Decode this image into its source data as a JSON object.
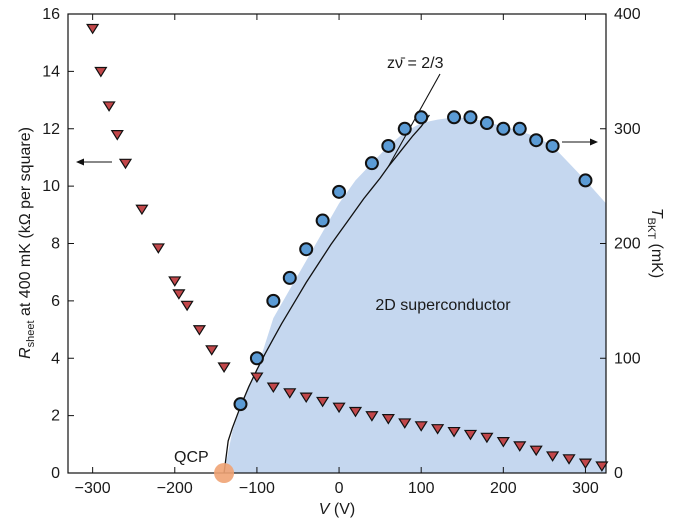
{
  "chart_data": {
    "type": "scatter",
    "xlabel": "V (V)",
    "xlabel_italic": "V",
    "xlabel_unit": " (V)",
    "ylabel_left_main": "R",
    "ylabel_left_sub": "sheet",
    "ylabel_left_rest": " at 400 mK (kΩ per square)",
    "ylabel_right_main": "T",
    "ylabel_right_sub": "BKT",
    "ylabel_right_rest": " (mK)",
    "xlim": [
      -330,
      325
    ],
    "ylim_left": [
      0,
      16
    ],
    "ylim_right": [
      0,
      400
    ],
    "xticks": [
      -300,
      -200,
      -100,
      0,
      100,
      200,
      300
    ],
    "xtick_labels": [
      "−300",
      "−200",
      "−100",
      "0",
      "100",
      "200",
      "300"
    ],
    "yticks_left": [
      0,
      2,
      4,
      6,
      8,
      10,
      12,
      14,
      16
    ],
    "ytick_labels_left": [
      "0",
      "2",
      "4",
      "6",
      "8",
      "10",
      "12",
      "14",
      "16"
    ],
    "yticks_right": [
      0,
      100,
      200,
      300,
      400
    ],
    "ytick_labels_right": [
      "0",
      "100",
      "200",
      "300",
      "400"
    ],
    "grid": false,
    "colors": {
      "triangle_fill": "#c2474a",
      "circle_fill": "#5b9bd5",
      "marker_edge": "#111111",
      "region_fill": "#c5d7ef",
      "qcp_marker": "#f0a374",
      "fit_line": "#111111"
    },
    "series": [
      {
        "marker": "triangle-down",
        "axis": "left",
        "x": [
          -300,
          -290,
          -280,
          -270,
          -260,
          -240,
          -220,
          -200,
          -195,
          -185,
          -170,
          -155,
          -140,
          -100,
          -80,
          -60,
          -40,
          -20,
          0,
          20,
          40,
          60,
          80,
          100,
          120,
          140,
          160,
          180,
          200,
          220,
          240,
          260,
          280,
          300,
          320
        ],
        "y": [
          15.5,
          14.0,
          12.8,
          11.8,
          10.8,
          9.2,
          7.85,
          6.7,
          6.25,
          5.85,
          5.0,
          4.3,
          3.7,
          3.35,
          3.0,
          2.8,
          2.65,
          2.5,
          2.3,
          2.15,
          2.0,
          1.9,
          1.75,
          1.65,
          1.55,
          1.45,
          1.35,
          1.25,
          1.1,
          0.95,
          0.8,
          0.6,
          0.5,
          0.35,
          0.25
        ]
      },
      {
        "marker": "circle",
        "axis": "right",
        "x": [
          -120,
          -100,
          -80,
          -60,
          -40,
          -20,
          0,
          40,
          60,
          80,
          100,
          140,
          160,
          180,
          200,
          220,
          240,
          260,
          300
        ],
        "y": [
          60,
          100,
          150,
          170,
          195,
          220,
          245,
          270,
          285,
          300,
          310,
          310,
          310,
          305,
          300,
          300,
          290,
          285,
          255
        ]
      }
    ],
    "region": {
      "label": "2D superconductor",
      "boundary_x": [
        -140,
        -130,
        -120,
        -110,
        -100,
        -80,
        -60,
        -40,
        -20,
        0,
        20,
        40,
        60,
        80,
        100,
        120,
        140,
        160,
        180,
        200,
        220,
        240,
        260,
        280,
        300,
        325
      ],
      "boundary_y": [
        0,
        36,
        58,
        75,
        90,
        135,
        160,
        185,
        210,
        235,
        255,
        270,
        285,
        297,
        305,
        308,
        310,
        309,
        306,
        302,
        298,
        293,
        285,
        270,
        255,
        235
      ]
    },
    "fit_curve": {
      "label": "zν̄ = 2/3",
      "x": [
        -140,
        -135,
        -130,
        -120,
        -110,
        -100,
        -90,
        -80,
        -70,
        -60,
        -50,
        -40,
        -30,
        -20,
        -10,
        0,
        10,
        20,
        30,
        40,
        50,
        60,
        70,
        80,
        90,
        100,
        110
      ],
      "y": [
        0,
        28,
        39,
        58,
        75,
        90,
        104,
        117,
        130,
        142,
        154,
        166,
        177,
        188,
        199,
        209,
        219,
        229,
        239,
        248,
        257,
        267,
        276,
        285,
        294,
        302,
        312
      ]
    },
    "annotations": {
      "qcp_label": "QCP",
      "qcp_x": -140,
      "qcp_y": 0
    }
  }
}
